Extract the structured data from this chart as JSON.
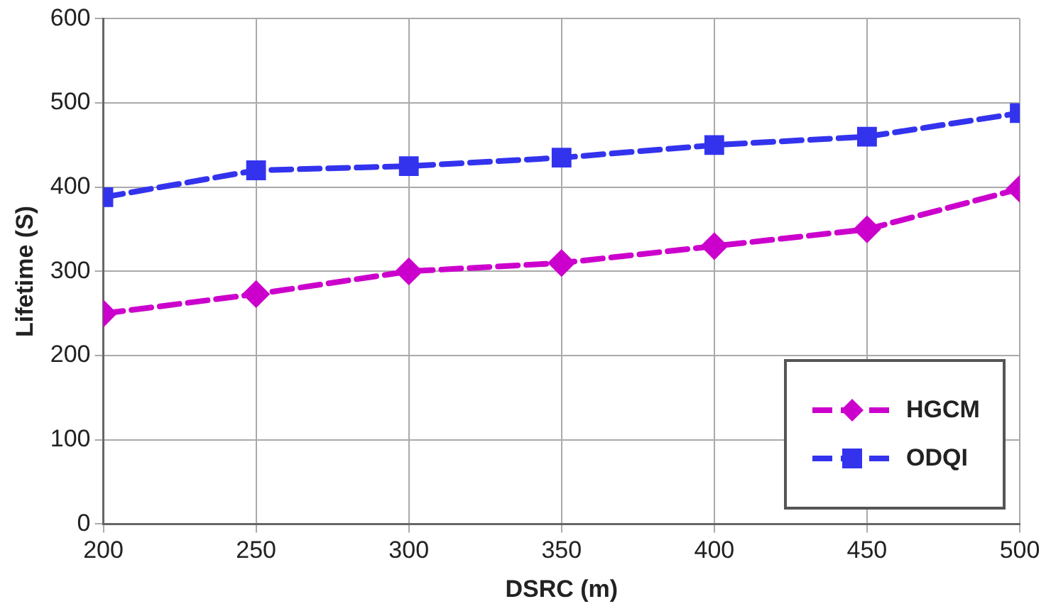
{
  "chart_data": {
    "type": "line",
    "xlabel": "DSRC (m)",
    "ylabel": "Lifetime (S)",
    "x": [
      200,
      250,
      300,
      350,
      400,
      450,
      500
    ],
    "xlim": [
      200,
      500
    ],
    "xticks": [
      200,
      250,
      300,
      350,
      400,
      450,
      500
    ],
    "ylim": [
      0,
      600
    ],
    "yticks": [
      0,
      100,
      200,
      300,
      400,
      500,
      600
    ],
    "grid": true,
    "legend": "bottom right",
    "series": [
      {
        "name": "HGCM",
        "color": "#cc00cc",
        "values": [
          250,
          273,
          300,
          310,
          330,
          350,
          398
        ],
        "marker": "diamond",
        "line_style": "dashed"
      },
      {
        "name": "ODQI",
        "color": "#3333ee",
        "values": [
          388,
          420,
          425,
          435,
          450,
          460,
          488
        ],
        "marker": "square",
        "line_style": "dashed"
      }
    ]
  }
}
